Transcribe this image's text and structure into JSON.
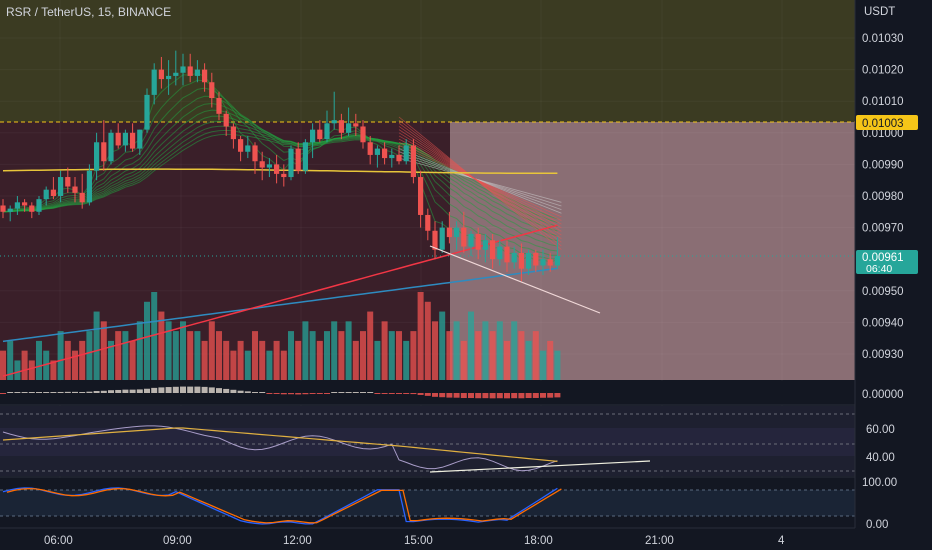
{
  "header": {
    "title": "RSR / TetherUS, 15, BINANCE"
  },
  "price_axis": {
    "currency": "USDT",
    "ticks": [
      "0.01030",
      "0.01020",
      "0.01010",
      "0.01000",
      "0.00990",
      "0.00980",
      "0.00970",
      "0.00950",
      "0.00940",
      "0.00930"
    ],
    "resistance_label": "0.01003",
    "current_price": "0.00961",
    "countdown": "06:40"
  },
  "time_axis": {
    "ticks": [
      "06:00",
      "09:00",
      "12:00",
      "15:00",
      "18:00",
      "21:00",
      "4"
    ]
  },
  "macd_pane": {
    "zero_label": "0.00000"
  },
  "rsi_pane": {
    "ticks": [
      "60.00",
      "40.00"
    ]
  },
  "stoch_pane": {
    "ticks": [
      "100.00",
      "0.00"
    ]
  },
  "colors": {
    "background": "#131722",
    "up": "#26a69a",
    "down": "#ef5350",
    "resistance": "#f5c518",
    "current": "#26a69a",
    "ma_red": "#f23645",
    "ma_blue": "#2e8bc0",
    "ribbon_green": "#22a040",
    "zone_target": "#8a6e74",
    "zone_upper": "#3b3b22",
    "zone_lower": "#3a1f29"
  },
  "chart_data": {
    "type": "candlestick",
    "symbol": "RSR / TetherUS",
    "interval": "15",
    "exchange": "BINANCE",
    "ylabel": "USDT",
    "ylim": [
      0.00922,
      0.01038
    ],
    "resistance": 0.01003,
    "last_price": 0.00961,
    "candles": [
      [
        0.00977,
        0.00979,
        0.00973,
        0.00975
      ],
      [
        0.00975,
        0.00977,
        0.00972,
        0.00976
      ],
      [
        0.00976,
        0.0098,
        0.00974,
        0.00978
      ],
      [
        0.00978,
        0.00979,
        0.00975,
        0.00977
      ],
      [
        0.00977,
        0.00978,
        0.00973,
        0.00975
      ],
      [
        0.00975,
        0.0098,
        0.00974,
        0.00979
      ],
      [
        0.00979,
        0.00983,
        0.00977,
        0.00982
      ],
      [
        0.00982,
        0.00986,
        0.00979,
        0.0098
      ],
      [
        0.0098,
        0.00988,
        0.00978,
        0.00986
      ],
      [
        0.00986,
        0.00989,
        0.00981,
        0.00983
      ],
      [
        0.00983,
        0.00986,
        0.00978,
        0.00981
      ],
      [
        0.00981,
        0.00987,
        0.00976,
        0.00978
      ],
      [
        0.00978,
        0.0099,
        0.00977,
        0.00988
      ],
      [
        0.00988,
        0.01,
        0.00985,
        0.00997
      ],
      [
        0.00997,
        0.01004,
        0.00988,
        0.00991
      ],
      [
        0.00991,
        0.01001,
        0.0099,
        0.01
      ],
      [
        0.01,
        0.01003,
        0.00995,
        0.00996
      ],
      [
        0.00996,
        0.01001,
        0.00994,
        0.01
      ],
      [
        0.01,
        0.01003,
        0.00994,
        0.00995
      ],
      [
        0.00995,
        0.01001,
        0.00993,
        0.01001
      ],
      [
        0.01001,
        0.01014,
        0.01,
        0.01012
      ],
      [
        0.01012,
        0.01022,
        0.01009,
        0.0102
      ],
      [
        0.0102,
        0.01024,
        0.01014,
        0.01017
      ],
      [
        0.01017,
        0.01023,
        0.01012,
        0.01018
      ],
      [
        0.01018,
        0.01026,
        0.01015,
        0.01019
      ],
      [
        0.01019,
        0.01025,
        0.01015,
        0.01021
      ],
      [
        0.01021,
        0.01025,
        0.01016,
        0.01018
      ],
      [
        0.01018,
        0.01023,
        0.01016,
        0.0102
      ],
      [
        0.0102,
        0.01022,
        0.01013,
        0.01016
      ],
      [
        0.01016,
        0.01019,
        0.01008,
        0.01011
      ],
      [
        0.01011,
        0.01013,
        0.01004,
        0.01006
      ],
      [
        0.01006,
        0.01007,
        0.00999,
        0.01002
      ],
      [
        0.01002,
        0.01003,
        0.00995,
        0.00998
      ],
      [
        0.00998,
        0.00999,
        0.00991,
        0.00994
      ],
      [
        0.00994,
        0.00999,
        0.00992,
        0.00996
      ],
      [
        0.00996,
        0.00997,
        0.00987,
        0.00991
      ],
      [
        0.00991,
        0.00994,
        0.00985,
        0.00989
      ],
      [
        0.00989,
        0.00992,
        0.00986,
        0.0099
      ],
      [
        0.0099,
        0.00993,
        0.00984,
        0.00987
      ],
      [
        0.00987,
        0.0099,
        0.00983,
        0.00986
      ],
      [
        0.00986,
        0.00996,
        0.00985,
        0.00995
      ],
      [
        0.00995,
        0.00997,
        0.00987,
        0.00988
      ],
      [
        0.00988,
        0.00998,
        0.00987,
        0.00997
      ],
      [
        0.00997,
        0.01003,
        0.00992,
        0.01001
      ],
      [
        0.01001,
        0.01004,
        0.00997,
        0.00998
      ],
      [
        0.00998,
        0.01007,
        0.00997,
        0.01003
      ],
      [
        0.01003,
        0.01013,
        0.01001,
        0.01004
      ],
      [
        0.01004,
        0.01006,
        0.00998,
        0.01
      ],
      [
        0.01,
        0.01008,
        0.00999,
        0.01003
      ],
      [
        0.01003,
        0.01006,
        0.00999,
        0.01002
      ],
      [
        0.01002,
        0.01004,
        0.00995,
        0.00997
      ],
      [
        0.00997,
        0.00999,
        0.0099,
        0.00993
      ],
      [
        0.00993,
        0.00996,
        0.00989,
        0.00995
      ],
      [
        0.00995,
        0.00997,
        0.0099,
        0.00992
      ],
      [
        0.00992,
        0.00995,
        0.00989,
        0.00993
      ],
      [
        0.00993,
        0.00996,
        0.0099,
        0.00991
      ],
      [
        0.00991,
        0.00998,
        0.0099,
        0.00996
      ],
      [
        0.00996,
        0.00998,
        0.00984,
        0.00986
      ],
      [
        0.00986,
        0.00988,
        0.0097,
        0.00974
      ],
      [
        0.00974,
        0.00976,
        0.00966,
        0.00969
      ],
      [
        0.00969,
        0.00972,
        0.0096,
        0.00963
      ],
      [
        0.00963,
        0.00972,
        0.00962,
        0.0097
      ],
      [
        0.0097,
        0.00975,
        0.00965,
        0.00967
      ],
      [
        0.00967,
        0.00972,
        0.00963,
        0.0097
      ],
      [
        0.0097,
        0.00975,
        0.00962,
        0.00964
      ],
      [
        0.00964,
        0.00969,
        0.00961,
        0.00968
      ],
      [
        0.00968,
        0.0097,
        0.0096,
        0.00963
      ],
      [
        0.00963,
        0.00968,
        0.00959,
        0.00966
      ],
      [
        0.00966,
        0.00968,
        0.00957,
        0.0096
      ],
      [
        0.0096,
        0.00966,
        0.00958,
        0.00964
      ],
      [
        0.00964,
        0.00966,
        0.00956,
        0.00959
      ],
      [
        0.00959,
        0.00964,
        0.00957,
        0.00962
      ],
      [
        0.00962,
        0.00965,
        0.00953,
        0.00957
      ],
      [
        0.00957,
        0.00963,
        0.00955,
        0.00962
      ],
      [
        0.00962,
        0.00963,
        0.00956,
        0.00958
      ],
      [
        0.00958,
        0.00963,
        0.00955,
        0.0096
      ],
      [
        0.0096,
        0.00962,
        0.00956,
        0.00958
      ],
      [
        0.00958,
        0.00967,
        0.00957,
        0.00961
      ]
    ],
    "volumes": [
      3,
      4,
      2,
      3,
      2,
      4,
      3,
      2,
      5,
      4,
      3,
      4,
      5,
      7,
      6,
      4,
      5,
      5,
      4,
      6,
      8,
      9,
      7,
      6,
      5,
      6,
      5,
      5,
      4,
      6,
      5,
      4,
      3,
      4,
      3,
      5,
      4,
      3,
      4,
      3,
      5,
      4,
      6,
      5,
      4,
      5,
      6,
      5,
      6,
      4,
      5,
      7,
      4,
      6,
      5,
      5,
      4,
      5,
      9,
      8,
      6,
      7,
      5,
      6,
      4,
      7,
      5,
      6,
      5,
      6,
      4,
      6,
      5,
      4,
      5,
      3,
      4,
      3
    ]
  }
}
